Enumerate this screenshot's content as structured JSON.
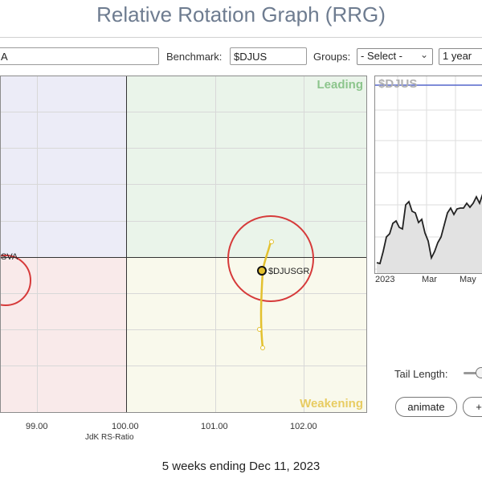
{
  "header": {
    "title": "Relative Rotation Graph (RRG)"
  },
  "controls": {
    "symbol_value": "A",
    "benchmark_label": "Benchmark:",
    "benchmark_value": "$DJUS",
    "groups_label": "Groups:",
    "groups_selected": "- Select -",
    "period_selected": "1 year"
  },
  "rrg": {
    "quadrants": {
      "leading": "Leading",
      "weakening": "Weakening"
    },
    "x_ticks": [
      "99.00",
      "100.00",
      "101.00",
      "102.00"
    ],
    "x_axis_title": "JdK RS-Ratio",
    "symbols": [
      {
        "label": "$DJUSGR",
        "highlighted": true
      },
      {
        "label": "SVA",
        "highlighted": true
      }
    ]
  },
  "mini_chart": {
    "symbol": "$DJUS",
    "x_ticks": [
      "2023",
      "Mar",
      "May"
    ]
  },
  "tail": {
    "label": "Tail Length:"
  },
  "buttons": {
    "animate": "animate",
    "plus": "+"
  },
  "footer": {
    "period_text": "5 weeks ending Dec 11, 2023"
  },
  "colors": {
    "tail": "#e3c12f",
    "highlight_circle": "#d63a3a",
    "benchmark_line": "#5566cc"
  },
  "icons": {
    "dropdown": "chevron-down-icon"
  }
}
